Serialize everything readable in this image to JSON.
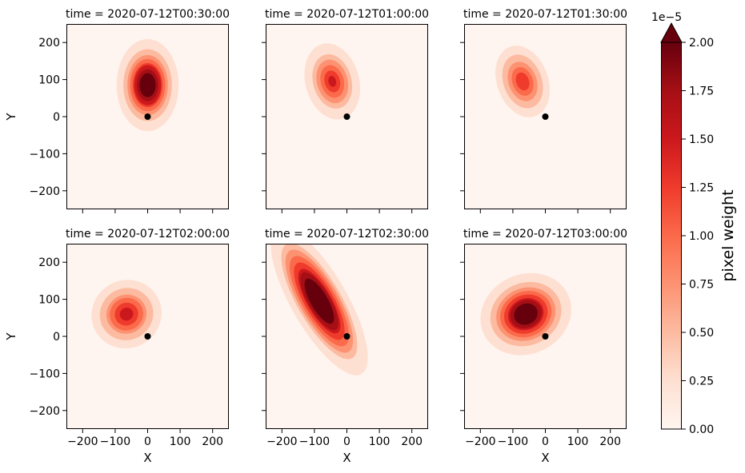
{
  "chart_data": {
    "type": "heatmap",
    "panels": [
      {
        "title": "time = 2020-07-12T00:30:00",
        "blob": {
          "cx": 0,
          "cy": 85,
          "rx": 40,
          "ry": 52,
          "rot": 0,
          "peak": 2.4
        }
      },
      {
        "title": "time = 2020-07-12T01:00:00",
        "blob": {
          "cx": -45,
          "cy": 95,
          "rx": 38,
          "ry": 48,
          "rot": -15,
          "peak": 1.45
        }
      },
      {
        "title": "time = 2020-07-12T01:30:00",
        "blob": {
          "cx": -70,
          "cy": 95,
          "rx": 38,
          "ry": 48,
          "rot": -20,
          "peak": 1.3
        }
      },
      {
        "title": "time = 2020-07-12T02:00:00",
        "blob": {
          "cx": -65,
          "cy": 60,
          "rx": 50,
          "ry": 42,
          "rot": -30,
          "peak": 1.55
        }
      },
      {
        "title": "time = 2020-07-12T02:30:00",
        "blob": {
          "cx": -85,
          "cy": 95,
          "rx": 36,
          "ry": 95,
          "rot": -30,
          "peak": 2.6
        }
      },
      {
        "title": "time = 2020-07-12T03:00:00",
        "blob": {
          "cx": -60,
          "cy": 60,
          "rx": 60,
          "ry": 45,
          "rot": -25,
          "peak": 2.3
        }
      }
    ],
    "xlabel": "X",
    "ylabel": "Y",
    "xlim": [
      -250,
      250
    ],
    "ylim": [
      -250,
      250
    ],
    "xticks": [
      -200,
      -100,
      0,
      100,
      200
    ],
    "yticks": [
      -200,
      -100,
      0,
      100,
      200
    ],
    "marker": {
      "x": 0,
      "y": 0
    },
    "colorbar": {
      "label": "pixel weight",
      "exponent_label": "1e−5",
      "range": [
        0,
        2.0
      ],
      "ticks": [
        "0.00",
        "0.25",
        "0.50",
        "0.75",
        "1.00",
        "1.25",
        "1.50",
        "1.75",
        "2.00"
      ],
      "extend": "max",
      "colormap": "Reds",
      "colors": [
        "#fff5f0",
        "#fee0d2",
        "#fcbba1",
        "#fc9272",
        "#fb6a4a",
        "#ef3b2c",
        "#cb181d",
        "#a50f15",
        "#67000d"
      ]
    },
    "grid": false
  }
}
